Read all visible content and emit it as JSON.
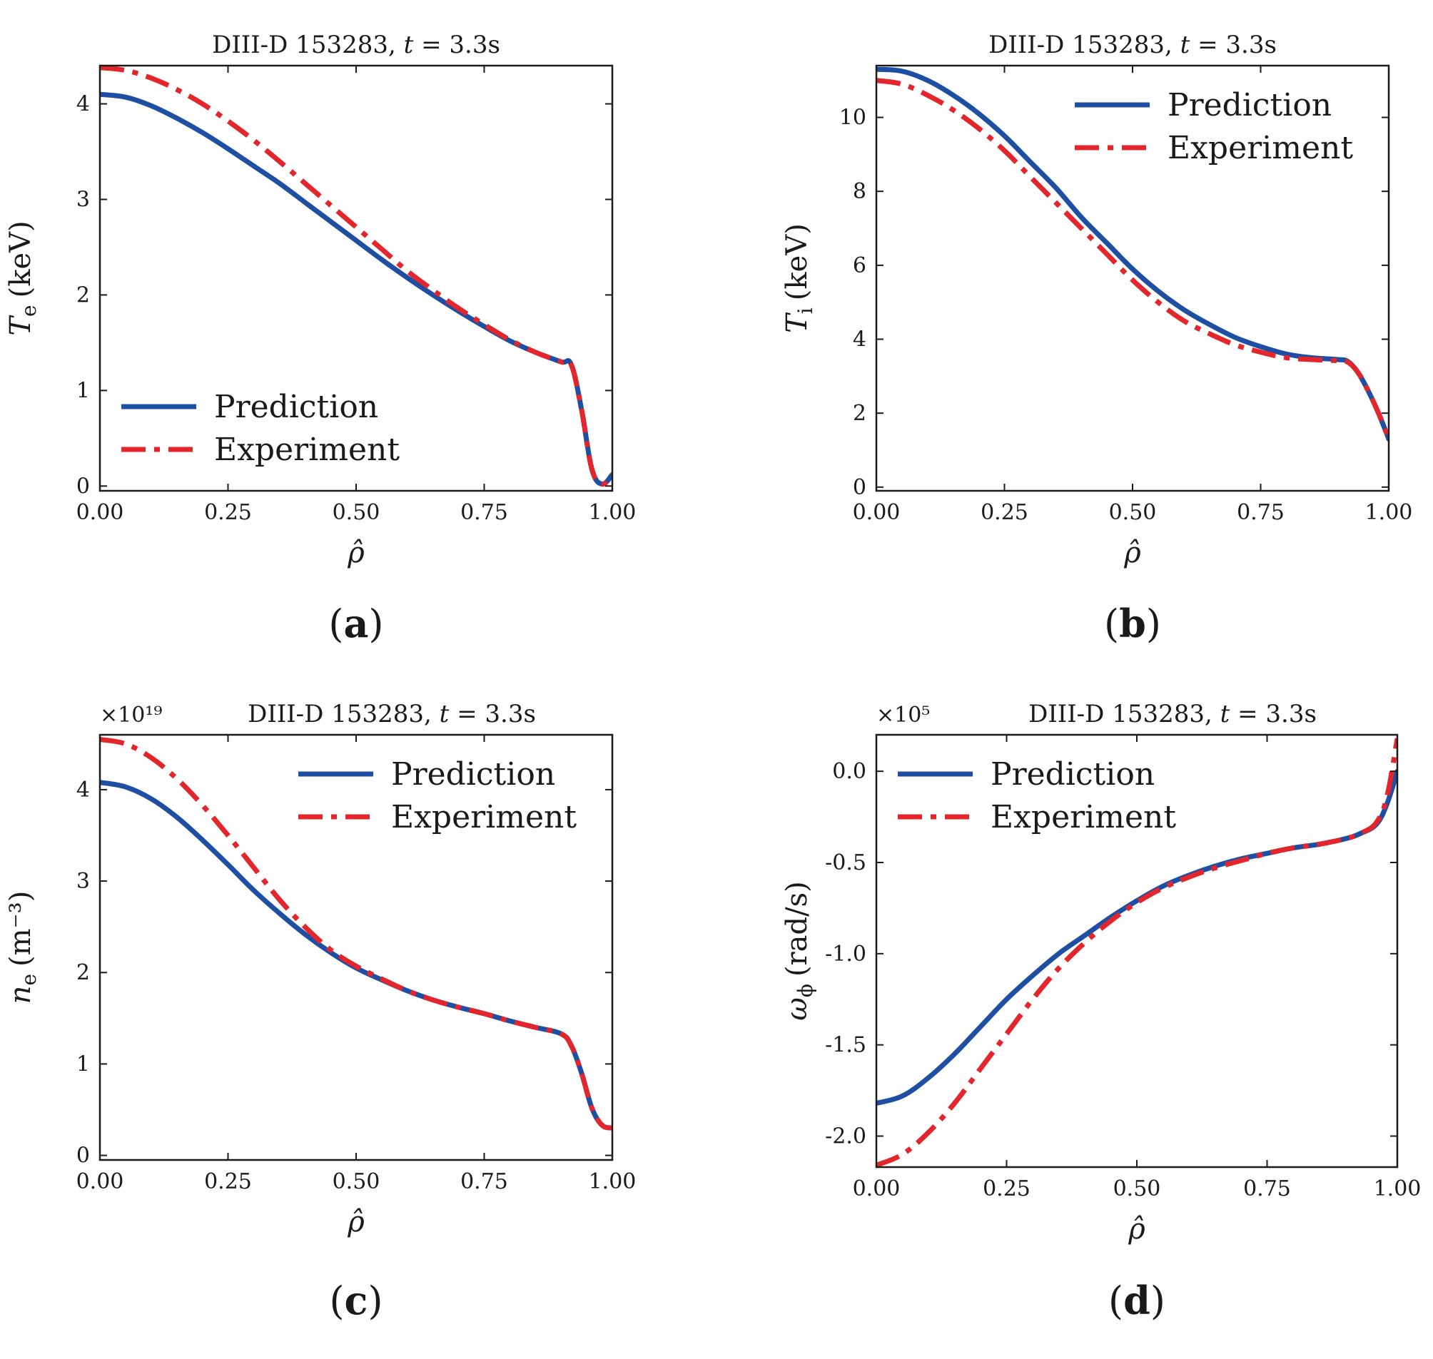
{
  "figure": {
    "colors": {
      "prediction": "#1f4fa3",
      "experiment": "#e3262b",
      "axes": "#1a1a1a"
    }
  },
  "chart_data": [
    {
      "id": "a",
      "type": "line",
      "panel_label": "a",
      "title_prefix": "DIII-D 153283, ",
      "title_var": "t",
      "title_suffix": " = 3.3s",
      "multiplier": "",
      "ylabel_var": "T",
      "ylabel_sub": "e",
      "ylabel_unit": "(keV)",
      "xlabel": "ρ̂",
      "xlim": [
        0,
        1
      ],
      "ylim": [
        -0.05,
        4.4
      ],
      "xticks": [
        0,
        0.25,
        0.5,
        0.75,
        1.0
      ],
      "xtick_labels": [
        "0.00",
        "0.25",
        "0.50",
        "0.75",
        "1.00"
      ],
      "yticks": [
        0,
        1,
        2,
        3,
        4
      ],
      "ytick_labels": [
        "0",
        "1",
        "2",
        "3",
        "4"
      ],
      "legend_position": "lower-left",
      "series": [
        {
          "name": "Prediction",
          "style": "solid",
          "x": [
            0,
            0.05,
            0.1,
            0.15,
            0.2,
            0.25,
            0.3,
            0.35,
            0.4,
            0.45,
            0.5,
            0.55,
            0.6,
            0.65,
            0.7,
            0.75,
            0.8,
            0.85,
            0.9,
            0.92,
            0.94,
            0.96,
            0.98,
            1.0
          ],
          "y": [
            4.1,
            4.07,
            3.98,
            3.85,
            3.7,
            3.53,
            3.35,
            3.17,
            2.97,
            2.77,
            2.57,
            2.37,
            2.18,
            2.0,
            1.83,
            1.67,
            1.52,
            1.4,
            1.3,
            1.27,
            0.8,
            0.18,
            0.02,
            0.12
          ]
        },
        {
          "name": "Experiment",
          "style": "dashdot",
          "x": [
            0,
            0.05,
            0.1,
            0.15,
            0.2,
            0.25,
            0.3,
            0.35,
            0.4,
            0.45,
            0.5,
            0.55,
            0.6,
            0.65,
            0.7,
            0.75,
            0.8,
            0.85,
            0.9,
            0.92,
            0.94,
            0.96,
            0.98,
            1.0
          ],
          "y": [
            4.38,
            4.35,
            4.27,
            4.15,
            4.0,
            3.82,
            3.62,
            3.4,
            3.17,
            2.94,
            2.71,
            2.48,
            2.25,
            2.05,
            1.86,
            1.69,
            1.53,
            1.4,
            1.3,
            1.27,
            0.8,
            0.18,
            0.02,
            0.12
          ]
        }
      ]
    },
    {
      "id": "b",
      "type": "line",
      "panel_label": "b",
      "title_prefix": "DIII-D 153283, ",
      "title_var": "t",
      "title_suffix": " = 3.3s",
      "multiplier": "",
      "ylabel_var": "T",
      "ylabel_sub": "i",
      "ylabel_unit": "(keV)",
      "xlabel": "ρ̂",
      "xlim": [
        0,
        1
      ],
      "ylim": [
        -0.1,
        11.4
      ],
      "xticks": [
        0,
        0.25,
        0.5,
        0.75,
        1.0
      ],
      "xtick_labels": [
        "0.00",
        "0.25",
        "0.50",
        "0.75",
        "1.00"
      ],
      "yticks": [
        0,
        2,
        4,
        6,
        8,
        10
      ],
      "ytick_labels": [
        "0",
        "2",
        "4",
        "6",
        "8",
        "10"
      ],
      "legend_position": "upper-right",
      "series": [
        {
          "name": "Prediction",
          "style": "solid",
          "x": [
            0,
            0.05,
            0.1,
            0.15,
            0.2,
            0.25,
            0.3,
            0.35,
            0.4,
            0.45,
            0.5,
            0.55,
            0.6,
            0.65,
            0.7,
            0.75,
            0.8,
            0.85,
            0.9,
            0.92,
            0.94,
            0.96,
            0.98,
            1.0
          ],
          "y": [
            11.3,
            11.25,
            11.0,
            10.6,
            10.1,
            9.5,
            8.8,
            8.1,
            7.3,
            6.6,
            5.9,
            5.3,
            4.8,
            4.4,
            4.05,
            3.8,
            3.6,
            3.5,
            3.45,
            3.4,
            3.1,
            2.6,
            2.0,
            1.3
          ]
        },
        {
          "name": "Experiment",
          "style": "dashdot",
          "x": [
            0,
            0.05,
            0.1,
            0.15,
            0.2,
            0.25,
            0.3,
            0.35,
            0.4,
            0.45,
            0.5,
            0.55,
            0.6,
            0.65,
            0.7,
            0.75,
            0.8,
            0.85,
            0.9,
            0.92,
            0.94,
            0.96,
            0.98,
            1.0
          ],
          "y": [
            11.0,
            10.9,
            10.6,
            10.2,
            9.7,
            9.1,
            8.4,
            7.7,
            7.0,
            6.3,
            5.6,
            5.0,
            4.5,
            4.15,
            3.85,
            3.65,
            3.5,
            3.45,
            3.42,
            3.38,
            3.1,
            2.6,
            2.0,
            1.3
          ]
        }
      ]
    },
    {
      "id": "c",
      "type": "line",
      "panel_label": "c",
      "title_prefix": "DIII-D 153283, ",
      "title_var": "t",
      "title_suffix": " = 3.3s",
      "multiplier": "×10¹⁹",
      "ylabel_var": "n",
      "ylabel_sub": "e",
      "ylabel_unit": "(m⁻³)",
      "xlabel": "ρ̂",
      "xlim": [
        0,
        1
      ],
      "ylim": [
        -0.05,
        4.6
      ],
      "xticks": [
        0,
        0.25,
        0.5,
        0.75,
        1.0
      ],
      "xtick_labels": [
        "0.00",
        "0.25",
        "0.50",
        "0.75",
        "1.00"
      ],
      "yticks": [
        0,
        1,
        2,
        3,
        4
      ],
      "ytick_labels": [
        "0",
        "1",
        "2",
        "3",
        "4"
      ],
      "legend_position": "upper-right",
      "series": [
        {
          "name": "Prediction",
          "style": "solid",
          "x": [
            0,
            0.05,
            0.1,
            0.15,
            0.2,
            0.25,
            0.3,
            0.35,
            0.4,
            0.45,
            0.5,
            0.55,
            0.6,
            0.65,
            0.7,
            0.75,
            0.8,
            0.85,
            0.9,
            0.92,
            0.94,
            0.96,
            0.98,
            1.0
          ],
          "y": [
            4.08,
            4.03,
            3.9,
            3.7,
            3.45,
            3.18,
            2.9,
            2.65,
            2.42,
            2.22,
            2.05,
            1.92,
            1.8,
            1.7,
            1.62,
            1.55,
            1.47,
            1.4,
            1.33,
            1.2,
            0.9,
            0.52,
            0.33,
            0.3
          ]
        },
        {
          "name": "Experiment",
          "style": "dashdot",
          "x": [
            0,
            0.05,
            0.1,
            0.15,
            0.2,
            0.25,
            0.3,
            0.35,
            0.4,
            0.45,
            0.5,
            0.55,
            0.6,
            0.65,
            0.7,
            0.75,
            0.8,
            0.85,
            0.9,
            0.92,
            0.94,
            0.96,
            0.98,
            1.0
          ],
          "y": [
            4.55,
            4.5,
            4.35,
            4.12,
            3.83,
            3.5,
            3.15,
            2.8,
            2.5,
            2.25,
            2.07,
            1.93,
            1.8,
            1.7,
            1.62,
            1.55,
            1.47,
            1.4,
            1.33,
            1.2,
            0.9,
            0.52,
            0.33,
            0.3
          ]
        }
      ]
    },
    {
      "id": "d",
      "type": "line",
      "panel_label": "d",
      "title_prefix": "DIII-D 153283, ",
      "title_var": "t",
      "title_suffix": " = 3.3s",
      "multiplier": "×10⁵",
      "ylabel_var": "ω",
      "ylabel_sub": "ϕ",
      "ylabel_unit": "(rad/s)",
      "xlabel": "ρ̂",
      "xlim": [
        0,
        1
      ],
      "ylim": [
        -2.17,
        0.2
      ],
      "xticks": [
        0,
        0.25,
        0.5,
        0.75,
        1.0
      ],
      "xtick_labels": [
        "0.00",
        "0.25",
        "0.50",
        "0.75",
        "1.00"
      ],
      "yticks": [
        0.0,
        -0.5,
        -1.0,
        -1.5,
        -2.0
      ],
      "ytick_labels": [
        "0.0",
        "-0.5",
        "-1.0",
        "-1.5",
        "-2.0"
      ],
      "legend_position": "upper-left",
      "series": [
        {
          "name": "Prediction",
          "style": "solid",
          "x": [
            0,
            0.05,
            0.1,
            0.15,
            0.2,
            0.25,
            0.3,
            0.35,
            0.4,
            0.45,
            0.5,
            0.55,
            0.6,
            0.65,
            0.7,
            0.75,
            0.8,
            0.85,
            0.9,
            0.93,
            0.96,
            0.98,
            1.0
          ],
          "y": [
            -1.82,
            -1.78,
            -1.68,
            -1.55,
            -1.4,
            -1.25,
            -1.12,
            -1.0,
            -0.9,
            -0.8,
            -0.71,
            -0.63,
            -0.57,
            -0.52,
            -0.48,
            -0.45,
            -0.42,
            -0.4,
            -0.37,
            -0.34,
            -0.29,
            -0.18,
            0.0
          ]
        },
        {
          "name": "Experiment",
          "style": "dashdot",
          "x": [
            0,
            0.05,
            0.1,
            0.15,
            0.2,
            0.25,
            0.3,
            0.35,
            0.4,
            0.45,
            0.5,
            0.55,
            0.6,
            0.65,
            0.7,
            0.75,
            0.8,
            0.85,
            0.9,
            0.93,
            0.96,
            0.98,
            1.0
          ],
          "y": [
            -2.16,
            -2.1,
            -1.98,
            -1.82,
            -1.63,
            -1.44,
            -1.25,
            -1.08,
            -0.94,
            -0.82,
            -0.72,
            -0.64,
            -0.58,
            -0.53,
            -0.49,
            -0.45,
            -0.42,
            -0.4,
            -0.37,
            -0.34,
            -0.28,
            -0.14,
            0.18
          ]
        }
      ]
    }
  ]
}
